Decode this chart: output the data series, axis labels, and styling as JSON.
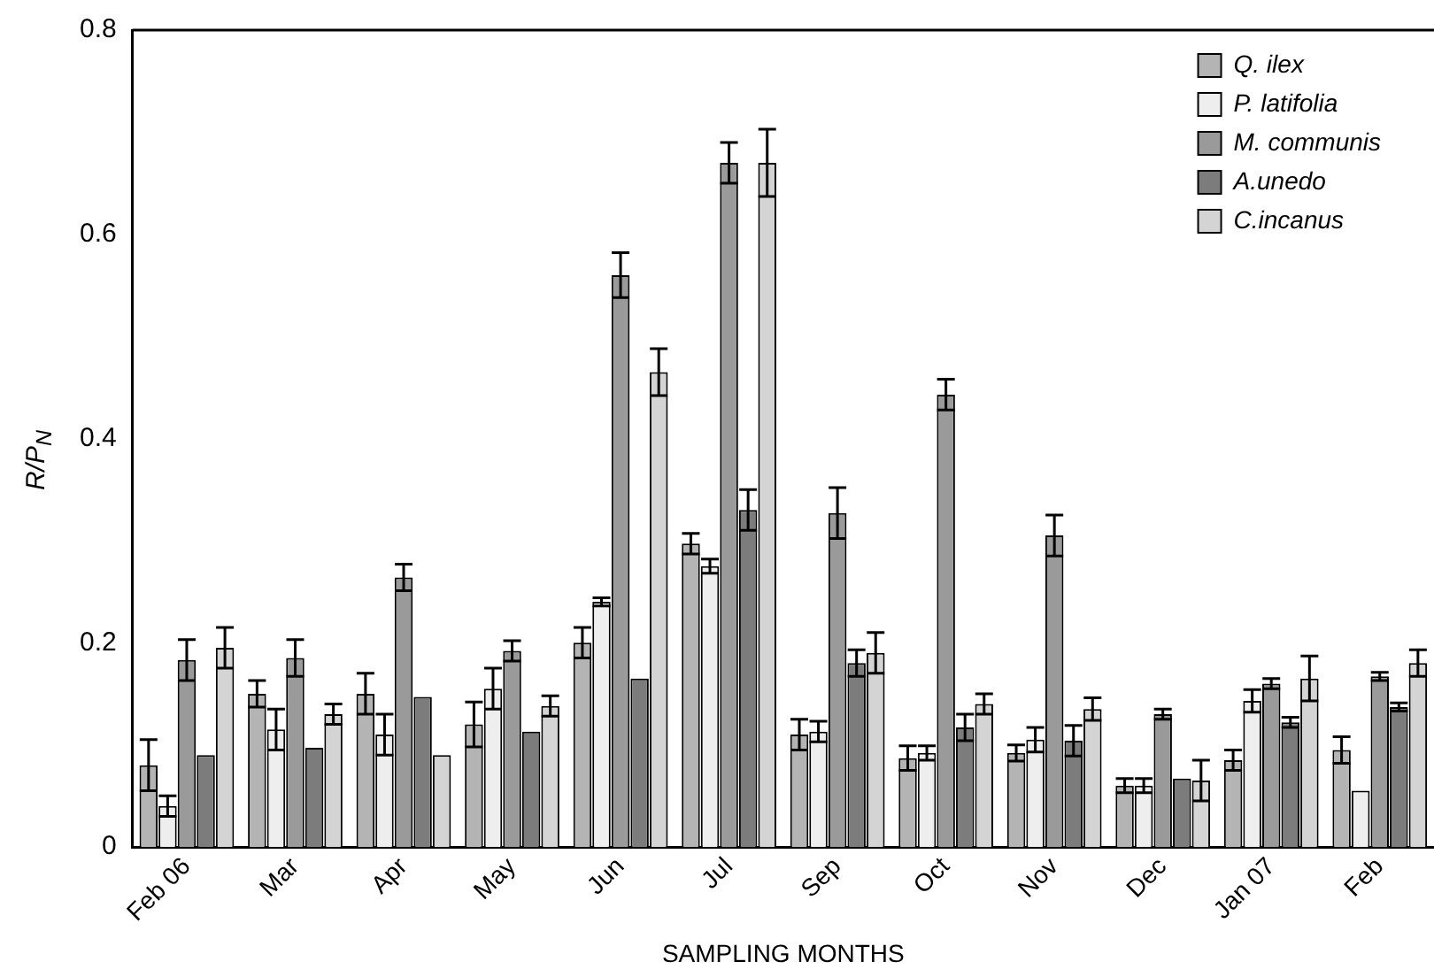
{
  "chart_data": {
    "type": "bar",
    "xlabel": "SAMPLING MONTHS",
    "ylabel": "R/P$_{N}$",
    "categories": [
      "Feb 06",
      "Mar",
      "Apr",
      "May",
      "Jun",
      "Jul",
      "Sep",
      "Oct",
      "Nov",
      "Dec",
      "Jan 07",
      "Feb"
    ],
    "ylim": [
      0,
      0.8
    ],
    "yticks": [
      0,
      0.2,
      0.4,
      0.6,
      0.8
    ],
    "grid": false,
    "legend": "top right",
    "series": [
      {
        "name": "Q. ilex",
        "color": "#b4b4b4",
        "values": [
          0.08,
          0.15,
          0.15,
          0.12,
          0.2,
          0.297,
          0.11,
          0.087,
          0.092,
          0.06,
          0.085,
          0.095
        ],
        "errors": [
          0.025,
          0.013,
          0.02,
          0.022,
          0.015,
          0.01,
          0.015,
          0.012,
          0.008,
          0.007,
          0.01,
          0.013
        ]
      },
      {
        "name": "P. latifolia",
        "color": "#eeeeee",
        "values": [
          0.04,
          0.115,
          0.11,
          0.155,
          0.24,
          0.275,
          0.113,
          0.092,
          0.105,
          0.06,
          0.143,
          0.055
        ],
        "errors": [
          0.01,
          0.02,
          0.02,
          0.02,
          0.004,
          0.007,
          0.01,
          0.007,
          0.012,
          0.007,
          0.011,
          null
        ]
      },
      {
        "name": "M. communis",
        "color": "#9a9a9a",
        "values": [
          0.183,
          0.185,
          0.264,
          0.192,
          0.56,
          0.67,
          0.327,
          0.443,
          0.305,
          0.13,
          0.16,
          0.167
        ],
        "errors": [
          0.02,
          0.018,
          0.013,
          0.01,
          0.022,
          0.02,
          0.025,
          0.015,
          0.02,
          0.005,
          0.005,
          0.004
        ]
      },
      {
        "name": "A.unedo",
        "color": "#7c7c7c",
        "values": [
          0.09,
          0.097,
          0.147,
          0.113,
          0.165,
          0.33,
          0.18,
          0.117,
          0.104,
          0.067,
          0.122,
          0.137
        ],
        "errors": [
          null,
          null,
          null,
          null,
          null,
          0.02,
          0.013,
          0.013,
          0.015,
          null,
          0.005,
          0.004
        ]
      },
      {
        "name": "C.incanus",
        "color": "#d4d4d4",
        "values": [
          0.195,
          0.13,
          0.09,
          0.138,
          0.465,
          0.67,
          0.19,
          0.14,
          0.135,
          0.065,
          0.165,
          0.18
        ],
        "errors": [
          0.02,
          0.01,
          null,
          0.01,
          0.023,
          0.033,
          0.02,
          0.01,
          0.011,
          0.02,
          0.022,
          0.013
        ]
      }
    ]
  }
}
